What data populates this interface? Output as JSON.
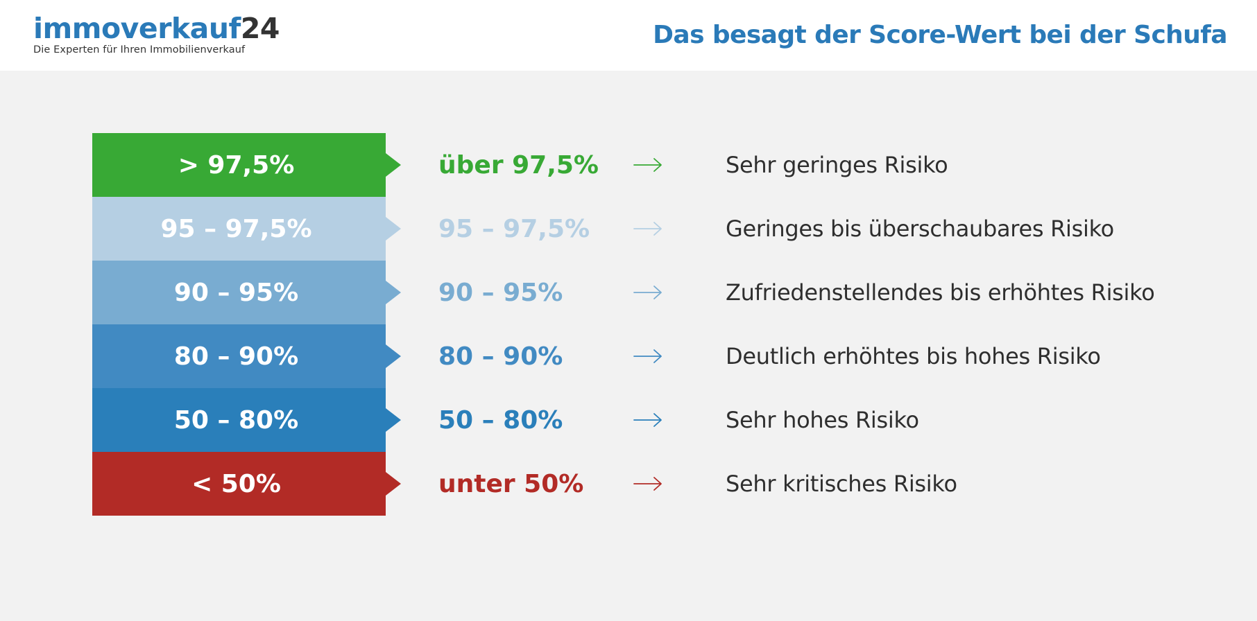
{
  "header": {
    "logo_name": "immoverkauf",
    "logo_number": "24",
    "logo_tagline": "Die Experten für Ihren Immobilienverkauf",
    "title": "Das besagt der Score-Wert bei der Schufa"
  },
  "rows": [
    {
      "badge": "> 97,5%",
      "range": "über  97,5%",
      "description": "Sehr geringes Risiko",
      "color": "#38a935",
      "icon": "arrow-right-icon"
    },
    {
      "badge": "95 – 97,5%",
      "range": "95 – 97,5%",
      "description": "Geringes bis überschaubares Risiko",
      "color": "#b5cfe3",
      "icon": "arrow-right-icon"
    },
    {
      "badge": "90 – 95%",
      "range": "90 – 95%",
      "description": "Zufriedenstellendes bis erhöhtes Risiko",
      "color": "#79acd1",
      "icon": "arrow-right-icon"
    },
    {
      "badge": "80 – 90%",
      "range": "80 – 90%",
      "description": "Deutlich erhöhtes bis hohes Risiko",
      "color": "#418ac2",
      "icon": "arrow-right-icon"
    },
    {
      "badge": "50 – 80%",
      "range": "50 – 80%",
      "description": "Sehr hohes Risiko",
      "color": "#2a7fba",
      "icon": "arrow-right-icon"
    },
    {
      "badge": "< 50%",
      "range": "unter 50%",
      "description": "Sehr kritisches Risiko",
      "color": "#b22b26",
      "icon": "arrow-right-icon"
    }
  ]
}
